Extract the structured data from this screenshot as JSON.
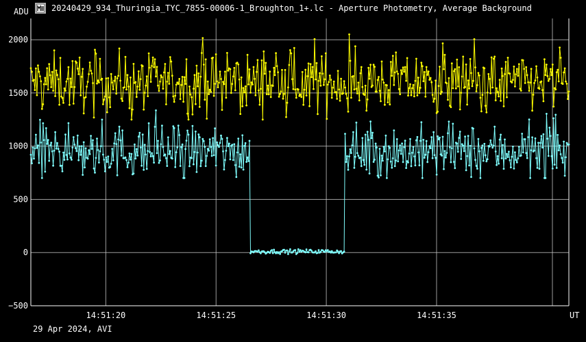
{
  "window": {
    "title": "20240429_934_Thuringia_TYC_7855-00006-1_Broughton_1+.lc - Aperture Photometry, Average Background",
    "footer": "29 Apr 2024, AVI"
  },
  "icons": {
    "app": "lightcurve-app-icon"
  },
  "colors": {
    "background": "#000000",
    "grid": "#d0d0d0",
    "target": "#80ffff",
    "comparison": "#ffff00"
  },
  "chart_data": {
    "type": "line",
    "ylabel": "ADU",
    "xlabel": "UT",
    "ylim": [
      -500,
      2200
    ],
    "yticks": [
      2000,
      1500,
      1000,
      500,
      0,
      -500
    ],
    "xlim": [
      "14:51:16.6",
      "14:51:41"
    ],
    "xticks": [
      "14:51:20",
      "14:51:25",
      "14:51:30",
      "14:51:35"
    ],
    "grid": true,
    "event": {
      "disappearance": "14:51:26.55",
      "reappearance": "14:51:30.85"
    },
    "series": [
      {
        "color": "#ffff00",
        "typical_level": 1600,
        "spread": [
          1250,
          2050
        ]
      },
      {
        "color": "#80ffff",
        "typical_level": 950,
        "spread": [
          700,
          1430
        ],
        "level_during_event": 10
      }
    ]
  }
}
